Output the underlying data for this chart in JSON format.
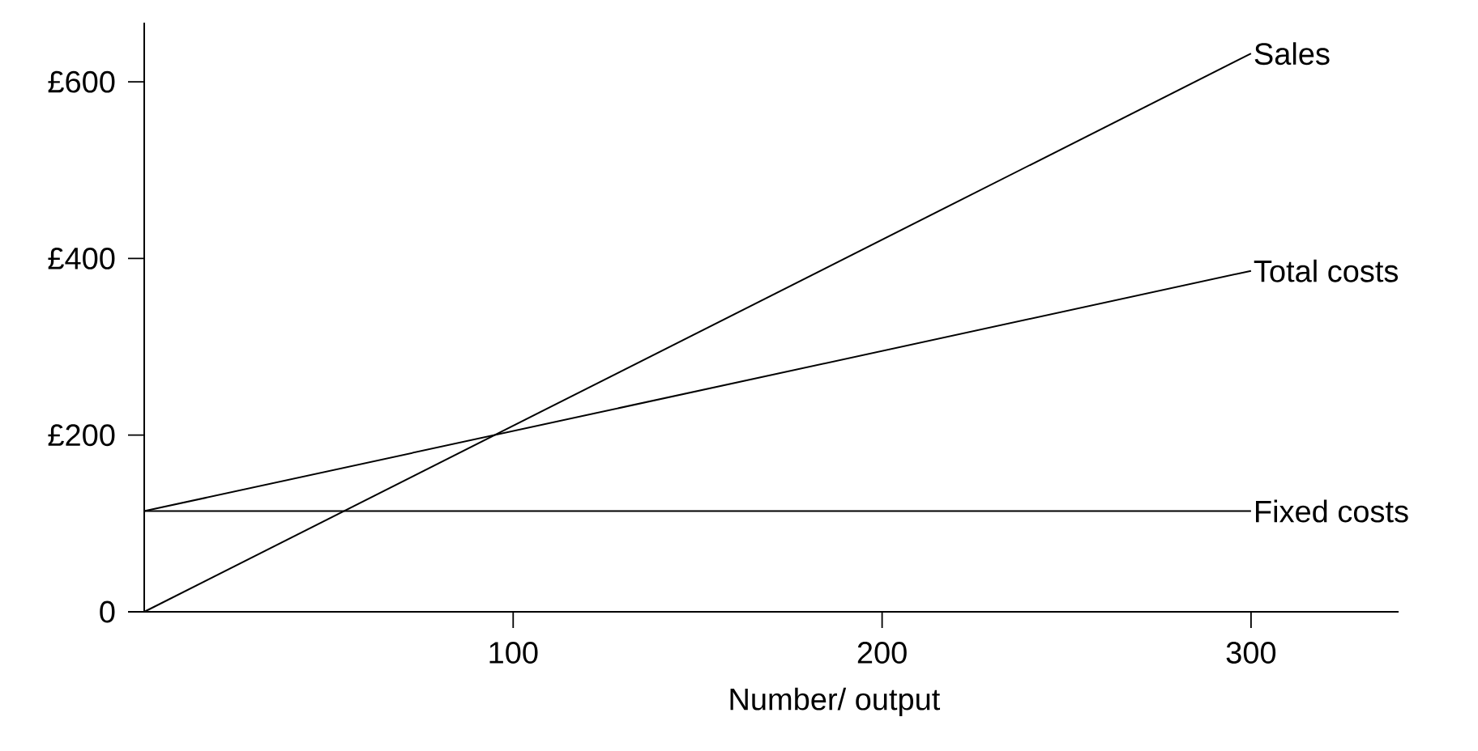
{
  "chart_data": {
    "type": "line",
    "xlabel": "Number/ output",
    "xlim": [
      0,
      340
    ],
    "ylim": [
      0,
      667
    ],
    "xticks": [
      100,
      200,
      300
    ],
    "yticks": [
      0,
      {
        "value": 200,
        "label": "£200"
      },
      {
        "value": 400,
        "label": "£400"
      },
      {
        "value": 600,
        "label": "£600"
      }
    ],
    "x": [
      0,
      300
    ],
    "series": [
      {
        "name": "Sales",
        "color": "#000000",
        "values": [
          0,
          632
        ]
      },
      {
        "name": "Total costs",
        "color": "#000000",
        "values": [
          114,
          386
        ]
      },
      {
        "name": "Fixed costs",
        "color": "#000000",
        "values": [
          114,
          114
        ]
      }
    ]
  }
}
